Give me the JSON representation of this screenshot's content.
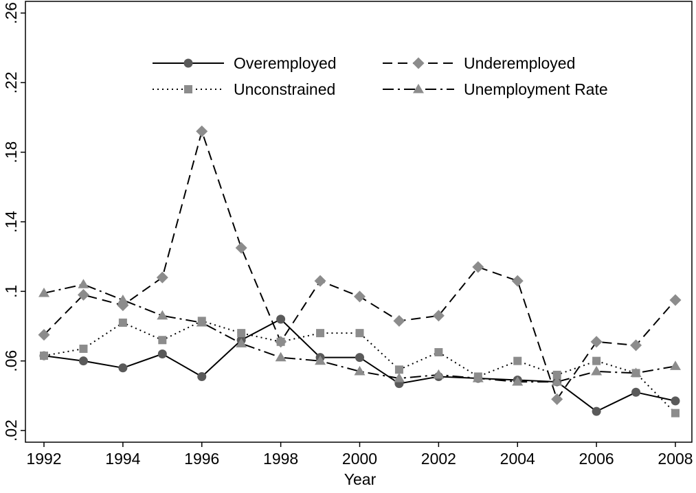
{
  "chart_data": {
    "type": "line",
    "xlabel": "Year",
    "ylabel": "",
    "xlim": [
      1992,
      2008
    ],
    "ylim": [
      0.02,
      0.26
    ],
    "x_ticks": [
      1992,
      1994,
      1996,
      1998,
      2000,
      2002,
      2004,
      2006,
      2008
    ],
    "x_tick_labels": [
      "1992",
      "1994",
      "1996",
      "1998",
      "2000",
      "2002",
      "2004",
      "2006",
      "2008"
    ],
    "y_ticks": [
      0.02,
      0.06,
      0.1,
      0.14,
      0.18,
      0.22,
      0.26
    ],
    "y_tick_labels": [
      ".02",
      ".06",
      ".1",
      ".14",
      ".18",
      ".22",
      ".26"
    ],
    "grid": false,
    "legend_position": "top-center",
    "x": [
      1992,
      1993,
      1994,
      1995,
      1996,
      1997,
      1998,
      1999,
      2000,
      2001,
      2002,
      2003,
      2004,
      2005,
      2006,
      2007,
      2008
    ],
    "series": [
      {
        "name": "Overemployed",
        "marker": "circle",
        "dash": "solid",
        "line_color": "#000000",
        "marker_color": "#5a5a5a",
        "values": [
          0.063,
          0.06,
          0.056,
          0.064,
          0.051,
          0.072,
          0.084,
          0.062,
          0.062,
          0.047,
          0.051,
          0.05,
          0.049,
          0.048,
          0.031,
          0.042,
          0.037
        ]
      },
      {
        "name": "Underemployed",
        "marker": "diamond",
        "dash": "dashed",
        "line_color": "#000000",
        "marker_color": "#8c8c8c",
        "values": [
          0.075,
          0.098,
          0.092,
          0.108,
          0.192,
          0.125,
          0.071,
          0.106,
          0.097,
          0.083,
          0.086,
          0.114,
          0.106,
          0.038,
          0.071,
          0.069,
          0.095
        ]
      },
      {
        "name": "Unconstrained",
        "marker": "square",
        "dash": "dotted",
        "line_color": "#000000",
        "marker_color": "#8c8c8c",
        "values": [
          0.063,
          0.067,
          0.082,
          0.072,
          0.083,
          0.076,
          0.071,
          0.076,
          0.076,
          0.055,
          0.065,
          0.051,
          0.06,
          0.052,
          0.06,
          0.053,
          0.03
        ]
      },
      {
        "name": "Unemployment Rate",
        "marker": "triangle",
        "dash": "dashdot",
        "line_color": "#000000",
        "marker_color": "#8c8c8c",
        "values": [
          0.099,
          0.104,
          0.095,
          0.086,
          0.082,
          0.07,
          0.062,
          0.06,
          0.054,
          0.05,
          0.052,
          0.05,
          0.048,
          0.048,
          0.054,
          0.053,
          0.057
        ]
      }
    ]
  }
}
